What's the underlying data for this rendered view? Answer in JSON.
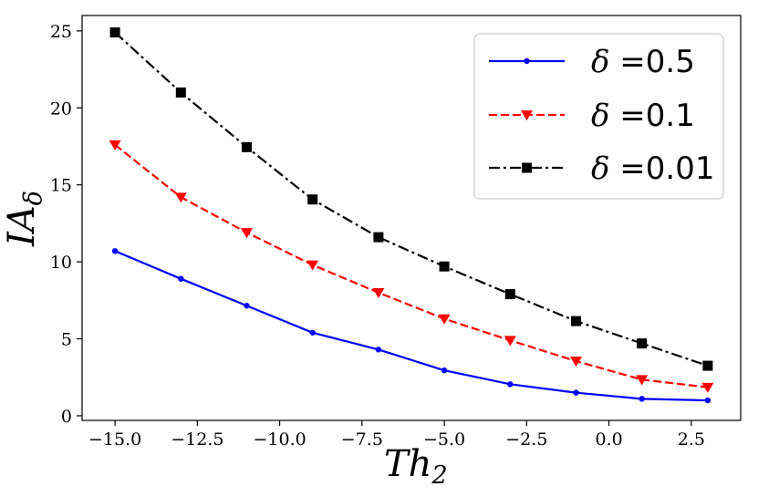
{
  "chart_data": {
    "type": "line",
    "title": "",
    "xlabel": "Th",
    "xlabel_sub": "2",
    "ylabel": "IA",
    "ylabel_sub": "δ",
    "xlim": [
      -16.0,
      4.0
    ],
    "ylim": [
      -0.3,
      26.0
    ],
    "grid": false,
    "legend_position": "top-right",
    "x": [
      -15,
      -13,
      -11,
      -9,
      -7,
      -5,
      -3,
      -1,
      1,
      3
    ],
    "x_ticks": [
      -15.0,
      -12.5,
      -10.0,
      -7.5,
      -5.0,
      -2.5,
      0.0,
      2.5
    ],
    "x_tick_labels": [
      "−15.0",
      "−12.5",
      "−10.0",
      "−7.5",
      "−5.0",
      "−2.5",
      "0.0",
      "2.5"
    ],
    "y_ticks": [
      0,
      5,
      10,
      15,
      20,
      25
    ],
    "y_tick_labels": [
      "0",
      "5",
      "10",
      "15",
      "20",
      "25"
    ],
    "series": [
      {
        "name": "δ =0.5",
        "delta_symbol": "δ",
        "label_value": "=0.5",
        "color": "#0000ff",
        "dash": "solid",
        "marker": "circle",
        "values": [
          10.7,
          8.9,
          7.15,
          5.4,
          4.3,
          2.95,
          2.05,
          1.5,
          1.1,
          1.0
        ]
      },
      {
        "name": "δ =0.1",
        "delta_symbol": "δ",
        "label_value": "=0.1",
        "color": "#ff0000",
        "dash": "dashed",
        "marker": "triangle-down",
        "values": [
          17.6,
          14.2,
          11.9,
          9.8,
          8.0,
          6.3,
          4.9,
          3.55,
          2.35,
          1.85
        ]
      },
      {
        "name": "δ =0.01",
        "delta_symbol": "δ",
        "label_value": "=0.01",
        "color": "#000000",
        "dash": "dashdot",
        "marker": "square",
        "values": [
          24.9,
          21.0,
          17.45,
          14.05,
          11.6,
          9.7,
          7.9,
          6.15,
          4.7,
          3.25
        ]
      }
    ]
  }
}
